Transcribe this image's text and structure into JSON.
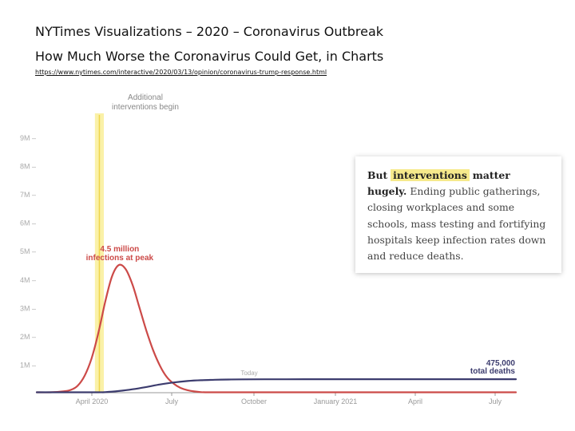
{
  "header": {
    "title_line1": "NYTimes Visualizations – 2020 – Coronavirus Outbreak",
    "title_line2": "How Much Worse the Coronavirus Could Get, in Charts",
    "source_url": "https://www.nytimes.com/interactive/2020/03/13/opinion/coronavirus-trump-response.html"
  },
  "callout": {
    "lead_prefix": "But",
    "lead_highlight": "interventions",
    "lead_suffix": "matter hugely.",
    "body": "Ending public gatherings, closing workplaces and some schools, mass testing and fortifying hospitals keep infection rates down and reduce deaths."
  },
  "chart_data": {
    "type": "line",
    "title": "",
    "xlabel": "",
    "ylabel": "",
    "x_ticks": [
      "April 2020",
      "July",
      "October",
      "January 2021",
      "April",
      "July"
    ],
    "y_ticks": [
      "1M –",
      "2M –",
      "3M –",
      "4M –",
      "5M –",
      "6M –",
      "7M –",
      "8M –",
      "9M –"
    ],
    "ylim": [
      0,
      9000000
    ],
    "xlim_weeks": [
      0,
      70
    ],
    "intervention_band": {
      "label_line1": "Additional",
      "label_line2": "interventions begin",
      "start_week": 8.5,
      "end_week": 9.8
    },
    "series": [
      {
        "name": "infections",
        "color": "#cc4a48",
        "x": [
          0,
          2,
          4,
          5,
          6,
          7,
          8,
          9,
          10,
          11,
          12,
          13,
          14,
          15,
          16,
          17,
          18,
          19,
          20,
          21,
          22,
          23,
          24,
          25,
          26,
          28,
          30,
          70
        ],
        "values": [
          0,
          10000,
          50000,
          100000,
          250000,
          600000,
          1200000,
          2100000,
          3200000,
          4100000,
          4500000,
          4350000,
          3800000,
          3000000,
          2200000,
          1500000,
          950000,
          550000,
          320000,
          170000,
          90000,
          45000,
          20000,
          8000,
          3000,
          1000,
          0,
          0
        ]
      },
      {
        "name": "deaths",
        "color": "#3c3c6e",
        "x": [
          0,
          8,
          10,
          12,
          14,
          16,
          18,
          20,
          22,
          24,
          26,
          28,
          30,
          35,
          40,
          50,
          60,
          70
        ],
        "values": [
          0,
          5000,
          20000,
          60000,
          120000,
          200000,
          290000,
          360000,
          410000,
          440000,
          455000,
          465000,
          470000,
          473000,
          474000,
          475000,
          475000,
          475000
        ]
      }
    ],
    "annotations": [
      {
        "line1": "4.5 million",
        "line2": "infections at peak",
        "series": "infections"
      },
      {
        "line1": "Today",
        "series": "none"
      },
      {
        "line1": "475,000",
        "line2": "total deaths",
        "series": "deaths"
      }
    ]
  }
}
